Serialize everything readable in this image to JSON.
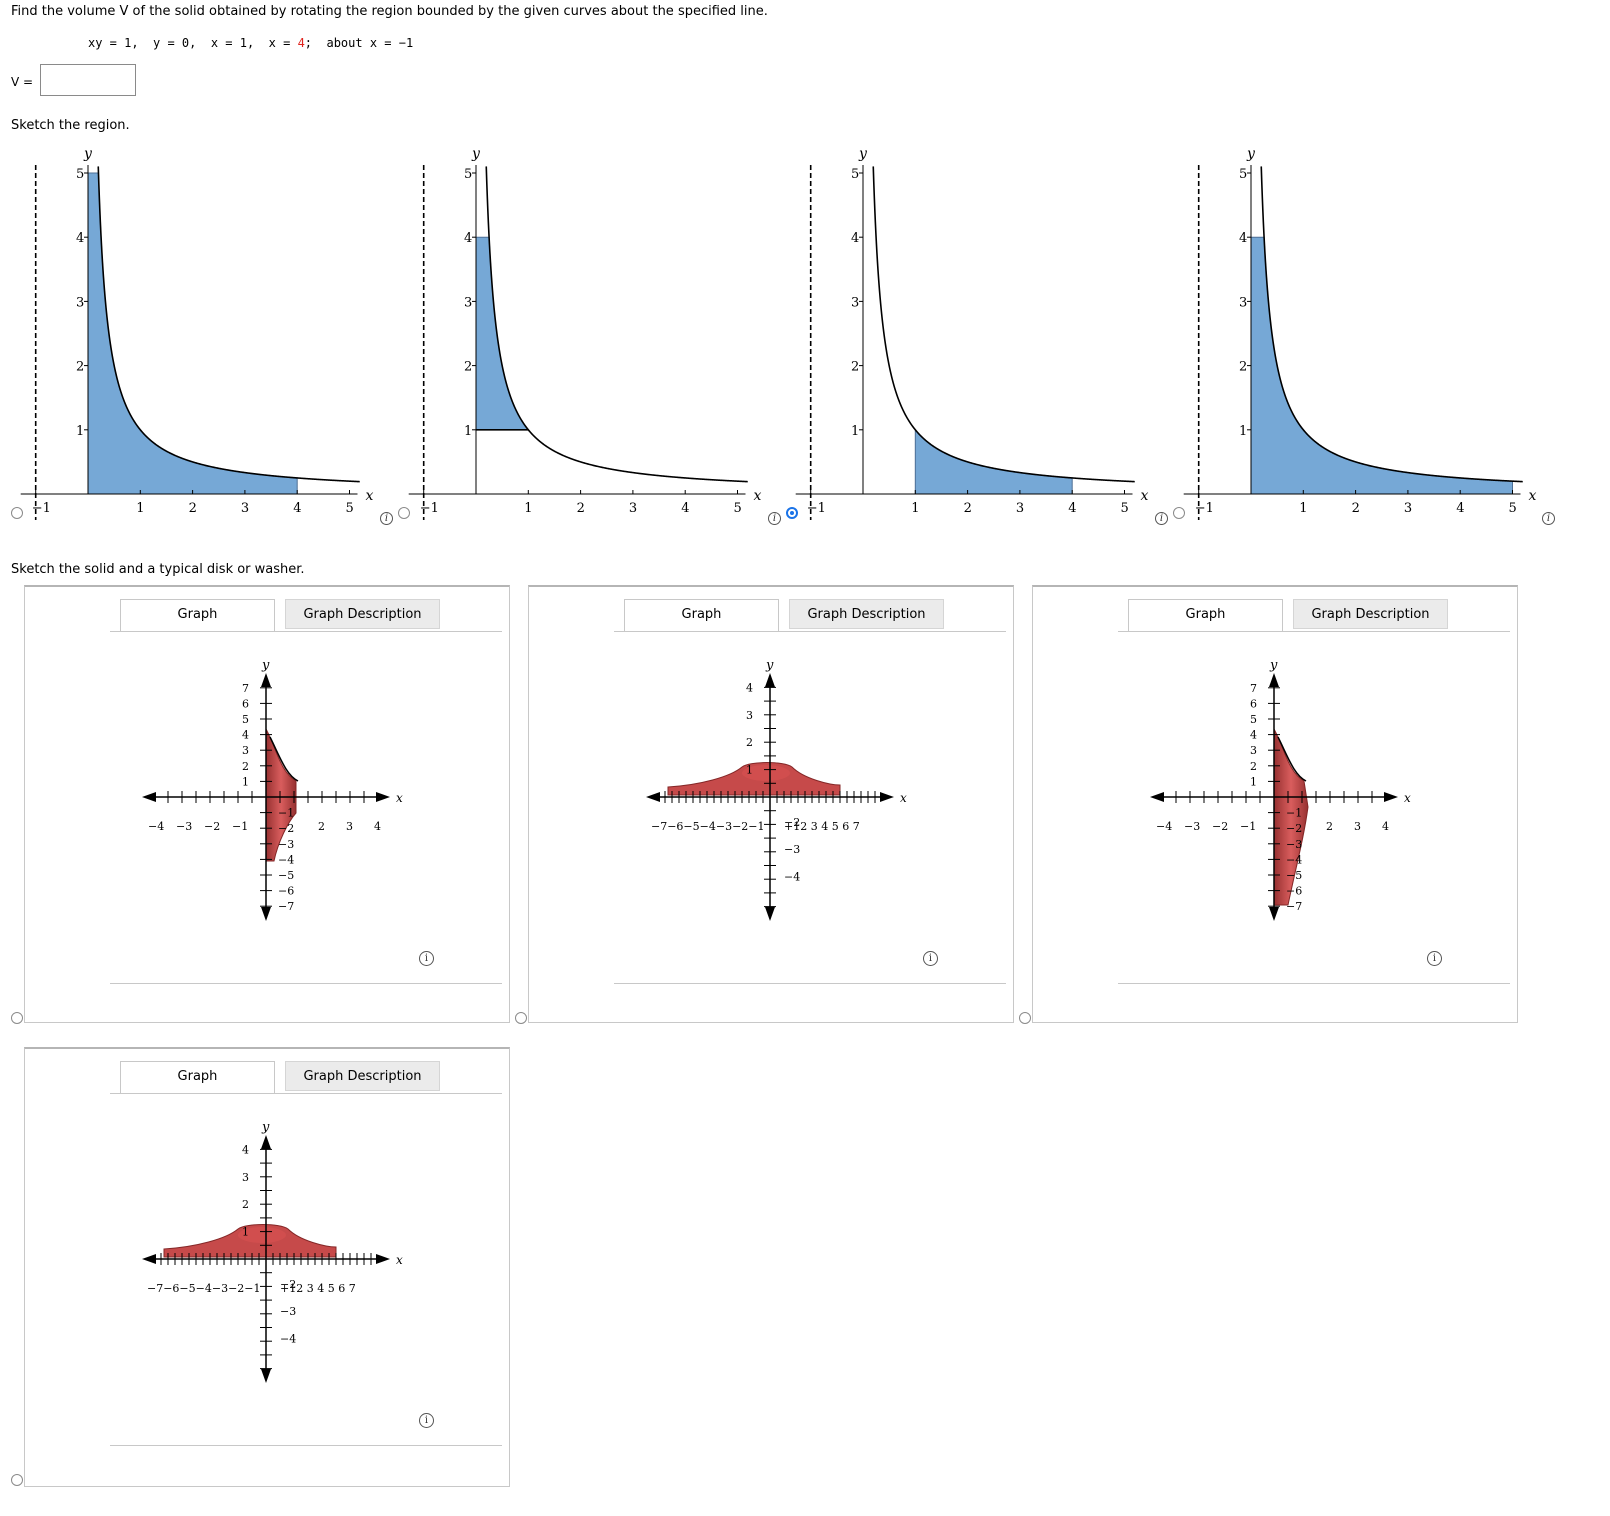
{
  "problem": {
    "instruction": "Find the volume V of the solid obtained by rotating the region bounded by the given curves about the specified line.",
    "eq1": "xy = 1,",
    "eq2": "y = 0,",
    "eq3": "x = 1,",
    "eq4_prefix": "x = ",
    "eq4_value": "4",
    "eq4_suffix": ";",
    "axis": "about x = −1",
    "v_label": "V =",
    "v_value": ""
  },
  "sketch_region": {
    "title": "Sketch the region.",
    "selected_index": 2,
    "graphs": [
      {
        "xlabel": "x",
        "ylabel": "y",
        "xticks": [
          "−1",
          "1",
          "2",
          "3",
          "4",
          "5"
        ],
        "yticks": [
          "1",
          "2",
          "3",
          "4",
          "5"
        ],
        "shade": "x=0.2..4, under y=1/x"
      },
      {
        "xlabel": "x",
        "ylabel": "y",
        "xticks": [
          "−1",
          "1",
          "2",
          "3",
          "4",
          "5"
        ],
        "yticks": [
          "1",
          "2",
          "3",
          "4",
          "5"
        ],
        "shade": "x=0..1, y=1..1/x capped at 4"
      },
      {
        "xlabel": "x",
        "ylabel": "y",
        "xticks": [
          "−1",
          "1",
          "2",
          "3",
          "4",
          "5"
        ],
        "yticks": [
          "1",
          "2",
          "3",
          "4",
          "5"
        ],
        "shade": "x=1..4, under y=1/x"
      },
      {
        "xlabel": "x",
        "ylabel": "y",
        "xticks": [
          "−1",
          "1",
          "2",
          "3",
          "4",
          "5"
        ],
        "yticks": [
          "1",
          "2",
          "3",
          "4",
          "5"
        ],
        "shade": "x=0..5, under y=1/x capped at 4"
      }
    ]
  },
  "sketch_solid": {
    "title": "Sketch the solid and a typical disk or washer.",
    "tab_graph": "Graph",
    "tab_description": "Graph Description",
    "panels": [
      {
        "type": "vertical",
        "xlabel": "x",
        "ylabel": "y",
        "xticks_neg": [
          "−4",
          "−3",
          "−2",
          "−1"
        ],
        "xticks_pos": [
          "2",
          "3",
          "4"
        ],
        "yticks_pos": [
          "7",
          "6",
          "5",
          "4",
          "3",
          "2",
          "1"
        ],
        "yticks_neg": [
          "−1",
          "−2",
          "−3",
          "−4",
          "−5",
          "−6",
          "−7"
        ]
      },
      {
        "type": "horizontal",
        "xlabel": "x",
        "ylabel": "y",
        "xtick_text_neg": "−7−6−5−4−3−2−1",
        "xtick_text_pos": "+12  3  4  5  6  7",
        "yticks_pos": [
          "4",
          "3",
          "2",
          "1"
        ],
        "yticks_neg": [
          "−2",
          "−3",
          "−4"
        ]
      },
      {
        "type": "vertical",
        "xlabel": "x",
        "ylabel": "y",
        "xticks_neg": [
          "−4",
          "−3",
          "−2",
          "−1"
        ],
        "xticks_pos": [
          "2",
          "3",
          "4"
        ],
        "yticks_pos": [
          "7",
          "6",
          "5",
          "4",
          "3",
          "2",
          "1"
        ],
        "yticks_neg": [
          "−1",
          "−2",
          "−3",
          "−4",
          "−5",
          "−6",
          "−7"
        ]
      },
      {
        "type": "horizontal",
        "xlabel": "x",
        "ylabel": "y",
        "xtick_text_neg": "−7−6−5−4−3−2−1",
        "xtick_text_pos": "+12  3  4  5  6  7",
        "yticks_pos": [
          "4",
          "3",
          "2",
          "1"
        ],
        "yticks_neg": [
          "−2",
          "−3",
          "−4"
        ]
      }
    ]
  },
  "icons": {
    "info": "info-icon",
    "radio": "radio-button"
  },
  "colors": {
    "shade": "#76a8d6",
    "solid": "#c23b3b",
    "selected": "#1a73e8"
  }
}
